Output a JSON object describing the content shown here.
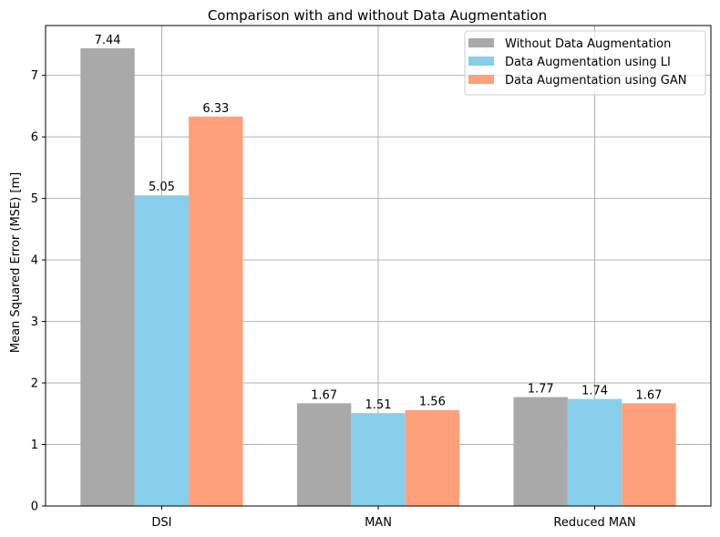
{
  "chart_data": {
    "type": "bar",
    "title": "Comparison with and without Data Augmentation",
    "xlabel": "",
    "ylabel": "Mean Squared Error (MSE) [m]",
    "categories": [
      "DSI",
      "MAN",
      "Reduced MAN"
    ],
    "series": [
      {
        "name": "Without Data Augmentation",
        "values": [
          7.44,
          1.67,
          1.77
        ],
        "color": "#a9a9a9"
      },
      {
        "name": "Data Augmentation using LI",
        "values": [
          5.05,
          1.51,
          1.74
        ],
        "color": "#87ceeb"
      },
      {
        "name": "Data Augmentation using GAN",
        "values": [
          6.33,
          1.56,
          1.67
        ],
        "color": "#ffa07a"
      }
    ],
    "value_labels": [
      [
        "7.44",
        "1.67",
        "1.77"
      ],
      [
        "5.05",
        "1.51",
        "1.74"
      ],
      [
        "6.33",
        "1.56",
        "1.67"
      ]
    ],
    "ylim": [
      0,
      7.81
    ],
    "yticks": [
      0,
      1,
      2,
      3,
      4,
      5,
      6,
      7
    ],
    "ytick_labels": [
      "0",
      "1",
      "2",
      "3",
      "4",
      "5",
      "6",
      "7"
    ],
    "grid": true,
    "legend_position": "top-right"
  }
}
